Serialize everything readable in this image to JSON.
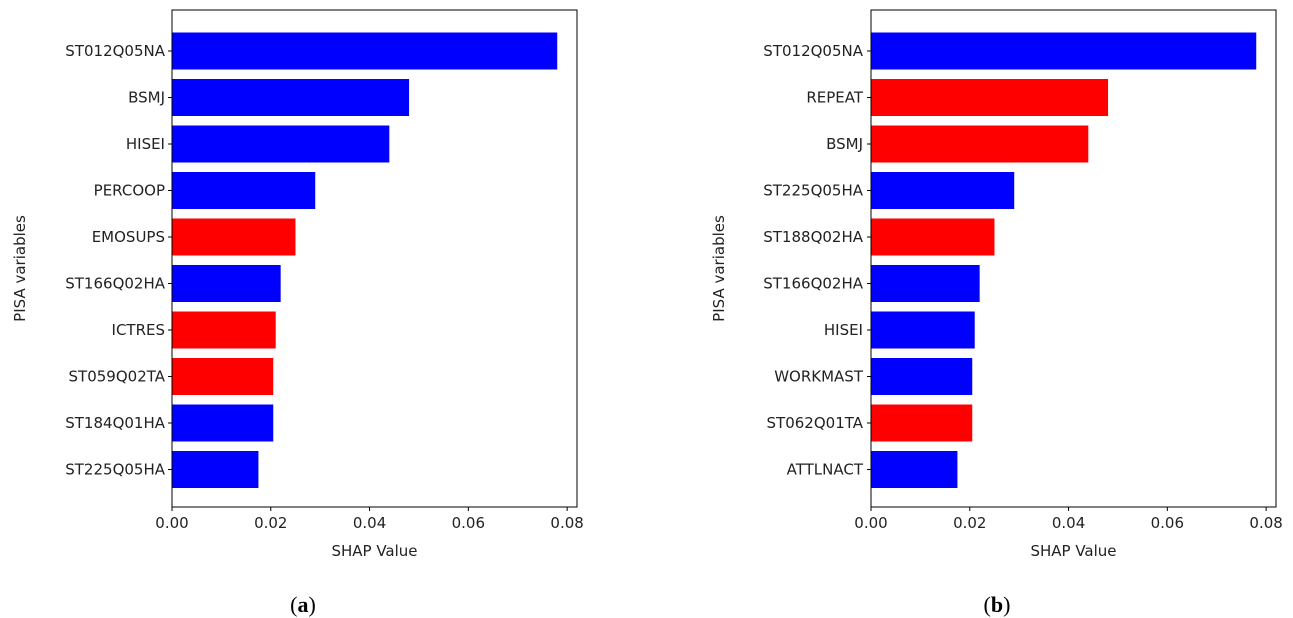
{
  "chart_data": [
    {
      "type": "bar",
      "orientation": "horizontal",
      "caption_open": "(",
      "caption_letter": "a",
      "caption_close": ")",
      "xlabel": "SHAP Value",
      "ylabel": "PISA variables",
      "xlim": [
        0,
        0.082
      ],
      "xticks": [
        "0.00",
        "0.02",
        "0.04",
        "0.06",
        "0.08"
      ],
      "grid": false,
      "categories": [
        "ST012Q05NA",
        "BSMJ",
        "HISEI",
        "PERCOOP",
        "EMOSUPS",
        "ST166Q02HA",
        "ICTRES",
        "ST059Q02TA",
        "ST184Q01HA",
        "ST225Q05HA"
      ],
      "values": [
        0.078,
        0.048,
        0.044,
        0.029,
        0.025,
        0.022,
        0.021,
        0.0205,
        0.0205,
        0.0175
      ],
      "colors": [
        "#0000ff",
        "#0000ff",
        "#0000ff",
        "#0000ff",
        "#ff0000",
        "#0000ff",
        "#ff0000",
        "#ff0000",
        "#0000ff",
        "#0000ff"
      ]
    },
    {
      "type": "bar",
      "orientation": "horizontal",
      "caption_open": "(",
      "caption_letter": "b",
      "caption_close": ")",
      "xlabel": "SHAP Value",
      "ylabel": "PISA variables",
      "xlim": [
        0,
        0.082
      ],
      "xticks": [
        "0.00",
        "0.02",
        "0.04",
        "0.06",
        "0.08"
      ],
      "grid": false,
      "categories": [
        "ST012Q05NA",
        "REPEAT",
        "BSMJ",
        "ST225Q05HA",
        "ST188Q02HA",
        "ST166Q02HA",
        "HISEI",
        "WORKMAST",
        "ST062Q01TA",
        "ATTLNACT"
      ],
      "values": [
        0.078,
        0.048,
        0.044,
        0.029,
        0.025,
        0.022,
        0.021,
        0.0205,
        0.0205,
        0.0175
      ],
      "colors": [
        "#0000ff",
        "#ff0000",
        "#ff0000",
        "#0000ff",
        "#ff0000",
        "#0000ff",
        "#0000ff",
        "#0000ff",
        "#ff0000",
        "#0000ff"
      ]
    }
  ]
}
